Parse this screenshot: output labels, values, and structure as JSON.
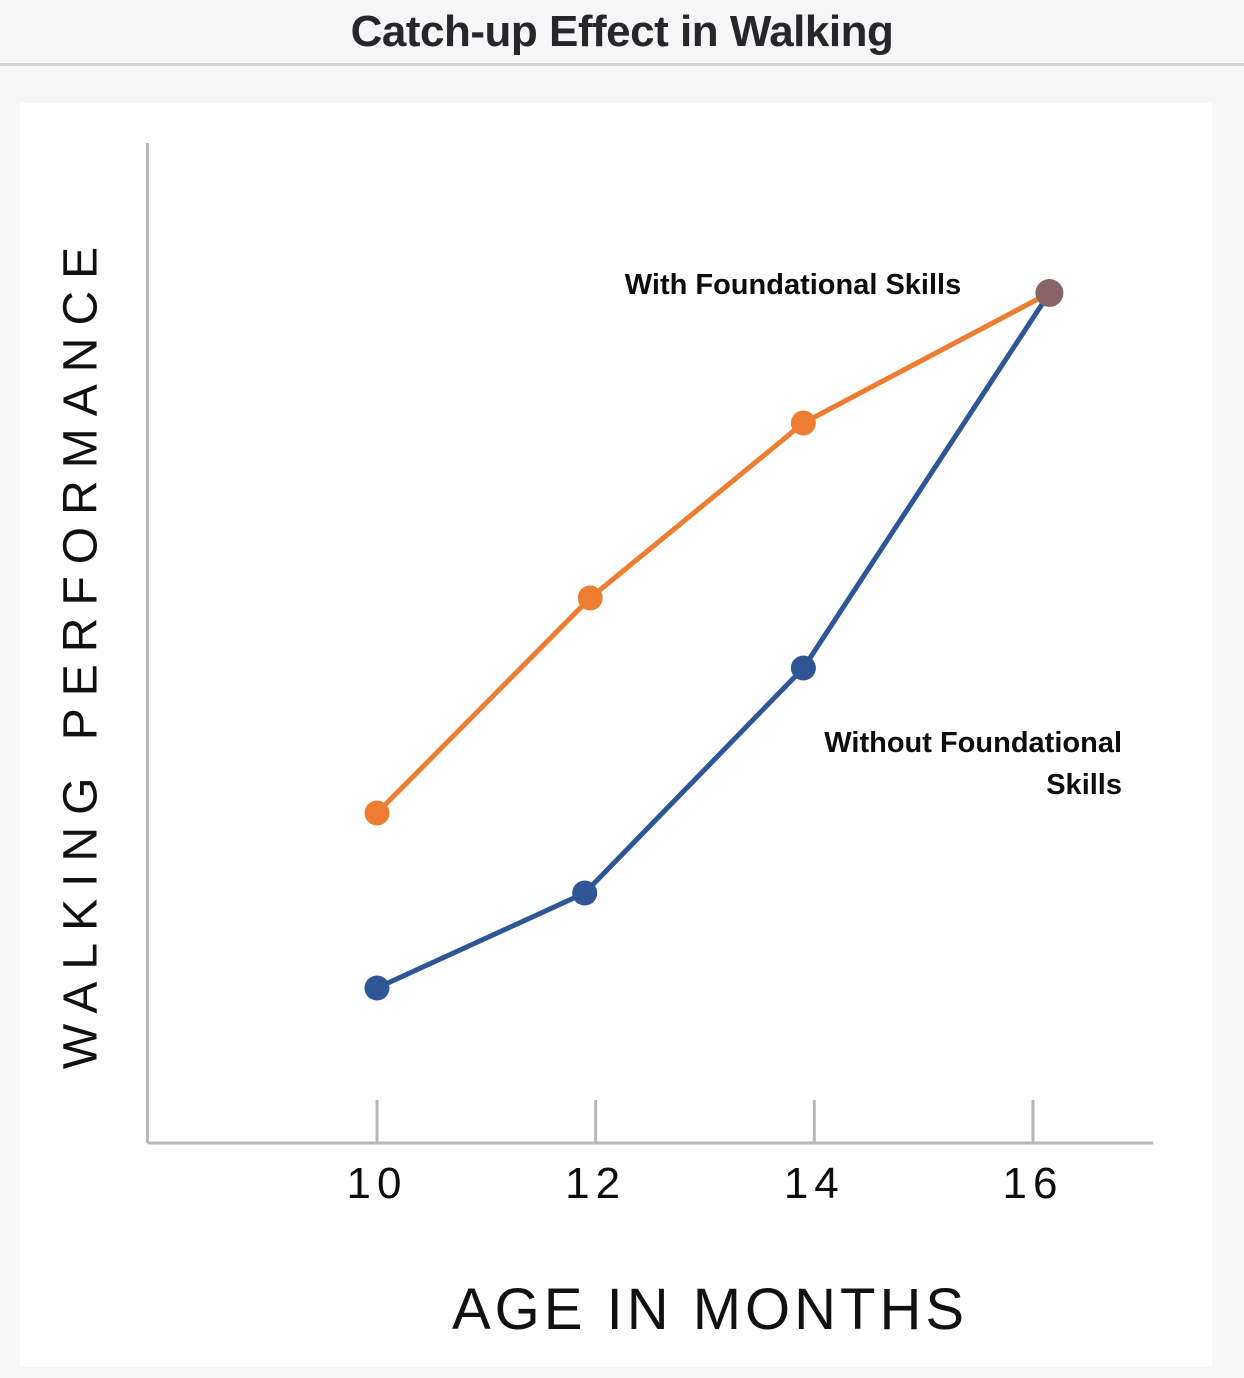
{
  "colors": {
    "page_background": "#F6F6F7",
    "card_background": "#FFFFFF",
    "divider": "#D2D2D4",
    "title_text": "#26272B",
    "label_text": "#0D0D0D",
    "axis": "#B8B8B8"
  },
  "chart_data": {
    "type": "line",
    "title": "Catch-up Effect in Walking",
    "xlabel": "AGE IN MONTHS",
    "ylabel": "WALKING PERFORMANCE",
    "x_ticks": [
      10,
      12,
      14,
      16
    ],
    "x_tick_labels": [
      "10",
      "12",
      "14",
      "16"
    ],
    "xlim": [
      7.9,
      17.1
    ],
    "ylim": [
      0,
      100
    ],
    "grid": false,
    "legend_position": "inline-annotations",
    "series": [
      {
        "name": "With Foundational Skills",
        "color": "#ED7D31",
        "x": [
          10,
          11.95,
          13.9,
          16.15
        ],
        "y": [
          33,
          54.5,
          72,
          85
        ]
      },
      {
        "name": "Without Foundational Skills",
        "color": "#2E5596",
        "x": [
          10,
          11.9,
          13.9,
          16.15
        ],
        "y": [
          15.5,
          25,
          47.5,
          85
        ]
      }
    ],
    "convergence_point": {
      "x": 16.15,
      "y": 85,
      "color": "#8A6465"
    }
  }
}
